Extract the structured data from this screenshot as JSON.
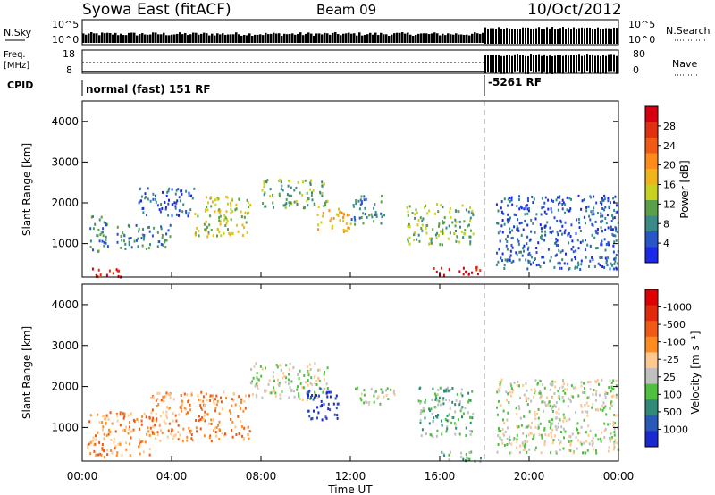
{
  "header": {
    "station": "Syowa East (fitACF)",
    "beam": "Beam 09",
    "date": "10/Oct/2012"
  },
  "status_panels": {
    "nsky_label": "N.Sky",
    "nsearch_label": "N.Search",
    "nsky_ticks": [
      "10^5",
      "10^0"
    ],
    "nsearch_ticks": [
      "10^5",
      "10^0"
    ],
    "freq_label": "Freq.",
    "freq_unit": "[MHz]",
    "freq_ticks": [
      "18",
      "8"
    ],
    "nave_label": "Nave",
    "nave_ticks": [
      "80",
      "0"
    ],
    "cpid_label": "CPID",
    "cpid_left": "normal (fast) 151 RF",
    "cpid_right": "-5261 RF"
  },
  "chart_data": [
    {
      "type": "heatmap",
      "title": "",
      "ylabel": "Slant Range [km]",
      "xlabel": "",
      "ylim": [
        180,
        4500
      ],
      "yticks": [
        "1000",
        "2000",
        "3000",
        "4000"
      ],
      "xticks": [
        "00:00",
        "04:00",
        "08:00",
        "12:00",
        "16:00",
        "20:00",
        "00:00"
      ],
      "x_hours": [
        0,
        24
      ],
      "mode_change_hour": 18,
      "colorbar": {
        "label": "Power [dB]",
        "ticks": [
          "4",
          "8",
          "12",
          "16",
          "20",
          "24",
          "28"
        ],
        "colors": [
          "#1a2ae8",
          "#2856c8",
          "#3a8a88",
          "#5aa048",
          "#c8d020",
          "#f0b418",
          "#ff8c1a",
          "#f05a14",
          "#e03010",
          "#d80010"
        ]
      },
      "patches": [
        {
          "t": [
            0.3,
            1.2
          ],
          "r": [
            800,
            1700
          ],
          "level": 2
        },
        {
          "t": [
            0.4,
            1.8
          ],
          "r": [
            200,
            450
          ],
          "level": 9
        },
        {
          "t": [
            1.5,
            4.0
          ],
          "r": [
            900,
            1500
          ],
          "level": 2
        },
        {
          "t": [
            2.5,
            5.0
          ],
          "r": [
            1700,
            2400
          ],
          "level": 1
        },
        {
          "t": [
            5.0,
            7.5
          ],
          "r": [
            1200,
            2200
          ],
          "level": 4
        },
        {
          "t": [
            8.0,
            11.0
          ],
          "r": [
            1900,
            2600
          ],
          "level": 3
        },
        {
          "t": [
            10.5,
            12.0
          ],
          "r": [
            1300,
            1900
          ],
          "level": 5
        },
        {
          "t": [
            12.0,
            13.5
          ],
          "r": [
            1500,
            2200
          ],
          "level": 2
        },
        {
          "t": [
            14.5,
            17.5
          ],
          "r": [
            1000,
            2000
          ],
          "level": 3
        },
        {
          "t": [
            15.5,
            18.0
          ],
          "r": [
            250,
            450
          ],
          "level": 9
        },
        {
          "t": [
            18.5,
            24.0
          ],
          "r": [
            400,
            2200
          ],
          "level": 1
        }
      ]
    },
    {
      "type": "heatmap",
      "title": "",
      "ylabel": "Slant Range [km]",
      "xlabel": "Time UT",
      "ylim": [
        180,
        4500
      ],
      "yticks": [
        "1000",
        "2000",
        "3000",
        "4000"
      ],
      "xticks": [
        "00:00",
        "04:00",
        "08:00",
        "12:00",
        "16:00",
        "20:00",
        "00:00"
      ],
      "x_hours": [
        0,
        24
      ],
      "mode_change_hour": 18,
      "colorbar": {
        "label": "Velocity [m s⁻¹]",
        "ticks": [
          "1000",
          "500",
          "100",
          "25",
          "-25",
          "-100",
          "-500",
          "-1000"
        ],
        "colors": [
          "#1a2ad0",
          "#2a5ab8",
          "#2f8a78",
          "#50c040",
          "#c0c0c0",
          "#ffc890",
          "#ff8c20",
          "#f05a14",
          "#e02a0a",
          "#e00000"
        ]
      },
      "patches": [
        {
          "t": [
            0.2,
            3.0
          ],
          "r": [
            300,
            1400
          ],
          "level": 6
        },
        {
          "t": [
            3.0,
            7.5
          ],
          "r": [
            700,
            1900
          ],
          "level": 6
        },
        {
          "t": [
            7.5,
            11.0
          ],
          "r": [
            1700,
            2600
          ],
          "level": 4
        },
        {
          "t": [
            10.0,
            11.5
          ],
          "r": [
            1200,
            2000
          ],
          "level": 0
        },
        {
          "t": [
            12.0,
            14.0
          ],
          "r": [
            1600,
            2000
          ],
          "level": 4
        },
        {
          "t": [
            15.0,
            17.5
          ],
          "r": [
            800,
            2000
          ],
          "level": 3
        },
        {
          "t": [
            16.0,
            18.0
          ],
          "r": [
            200,
            450
          ],
          "level": 3
        },
        {
          "t": [
            18.5,
            24.0
          ],
          "r": [
            400,
            2200
          ],
          "level": 4
        }
      ]
    }
  ]
}
